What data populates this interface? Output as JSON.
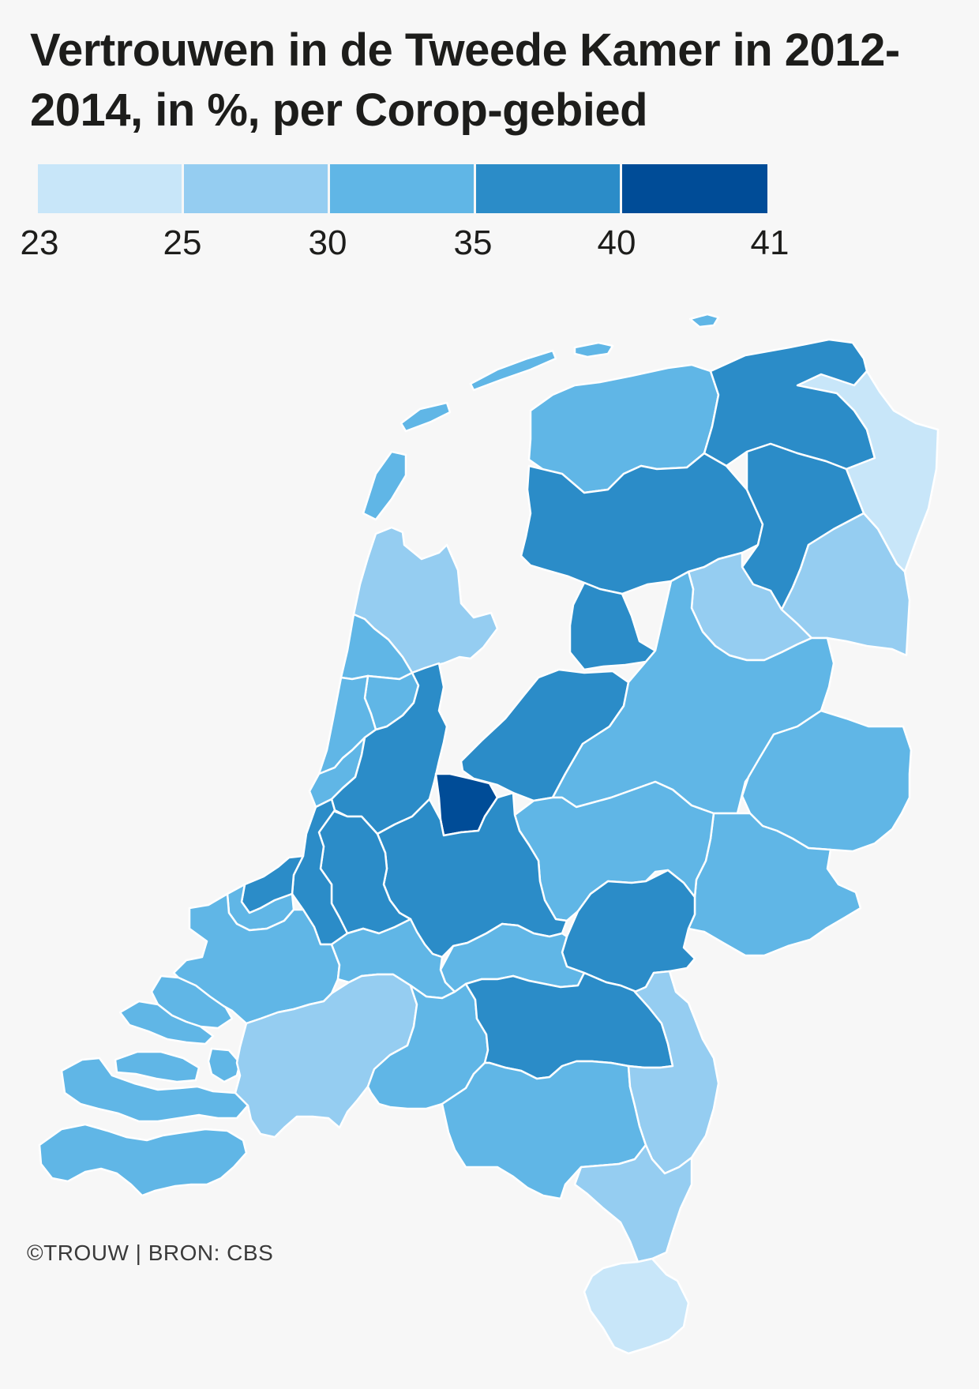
{
  "title": "Vertrouwen in de Tweede Kamer in 2012-2014, in %, per Corop-gebied",
  "credit": "©TROUW | BRON: CBS",
  "legend": {
    "ticks": [
      "23",
      "25",
      "30",
      "35",
      "40",
      "41"
    ],
    "bins": [
      {
        "from": 23,
        "to": 25,
        "color": "#c8e6f9"
      },
      {
        "from": 25,
        "to": 30,
        "color": "#95cdf1"
      },
      {
        "from": 30,
        "to": 35,
        "color": "#60b6e6"
      },
      {
        "from": 35,
        "to": 40,
        "color": "#2b8cc8"
      },
      {
        "from": 40,
        "to": 41,
        "color": "#004c97"
      }
    ]
  },
  "colors": {
    "background": "#f7f7f7",
    "water": "#f7f7f7",
    "border": "#ffffff",
    "text": "#1d1d1b"
  }
}
